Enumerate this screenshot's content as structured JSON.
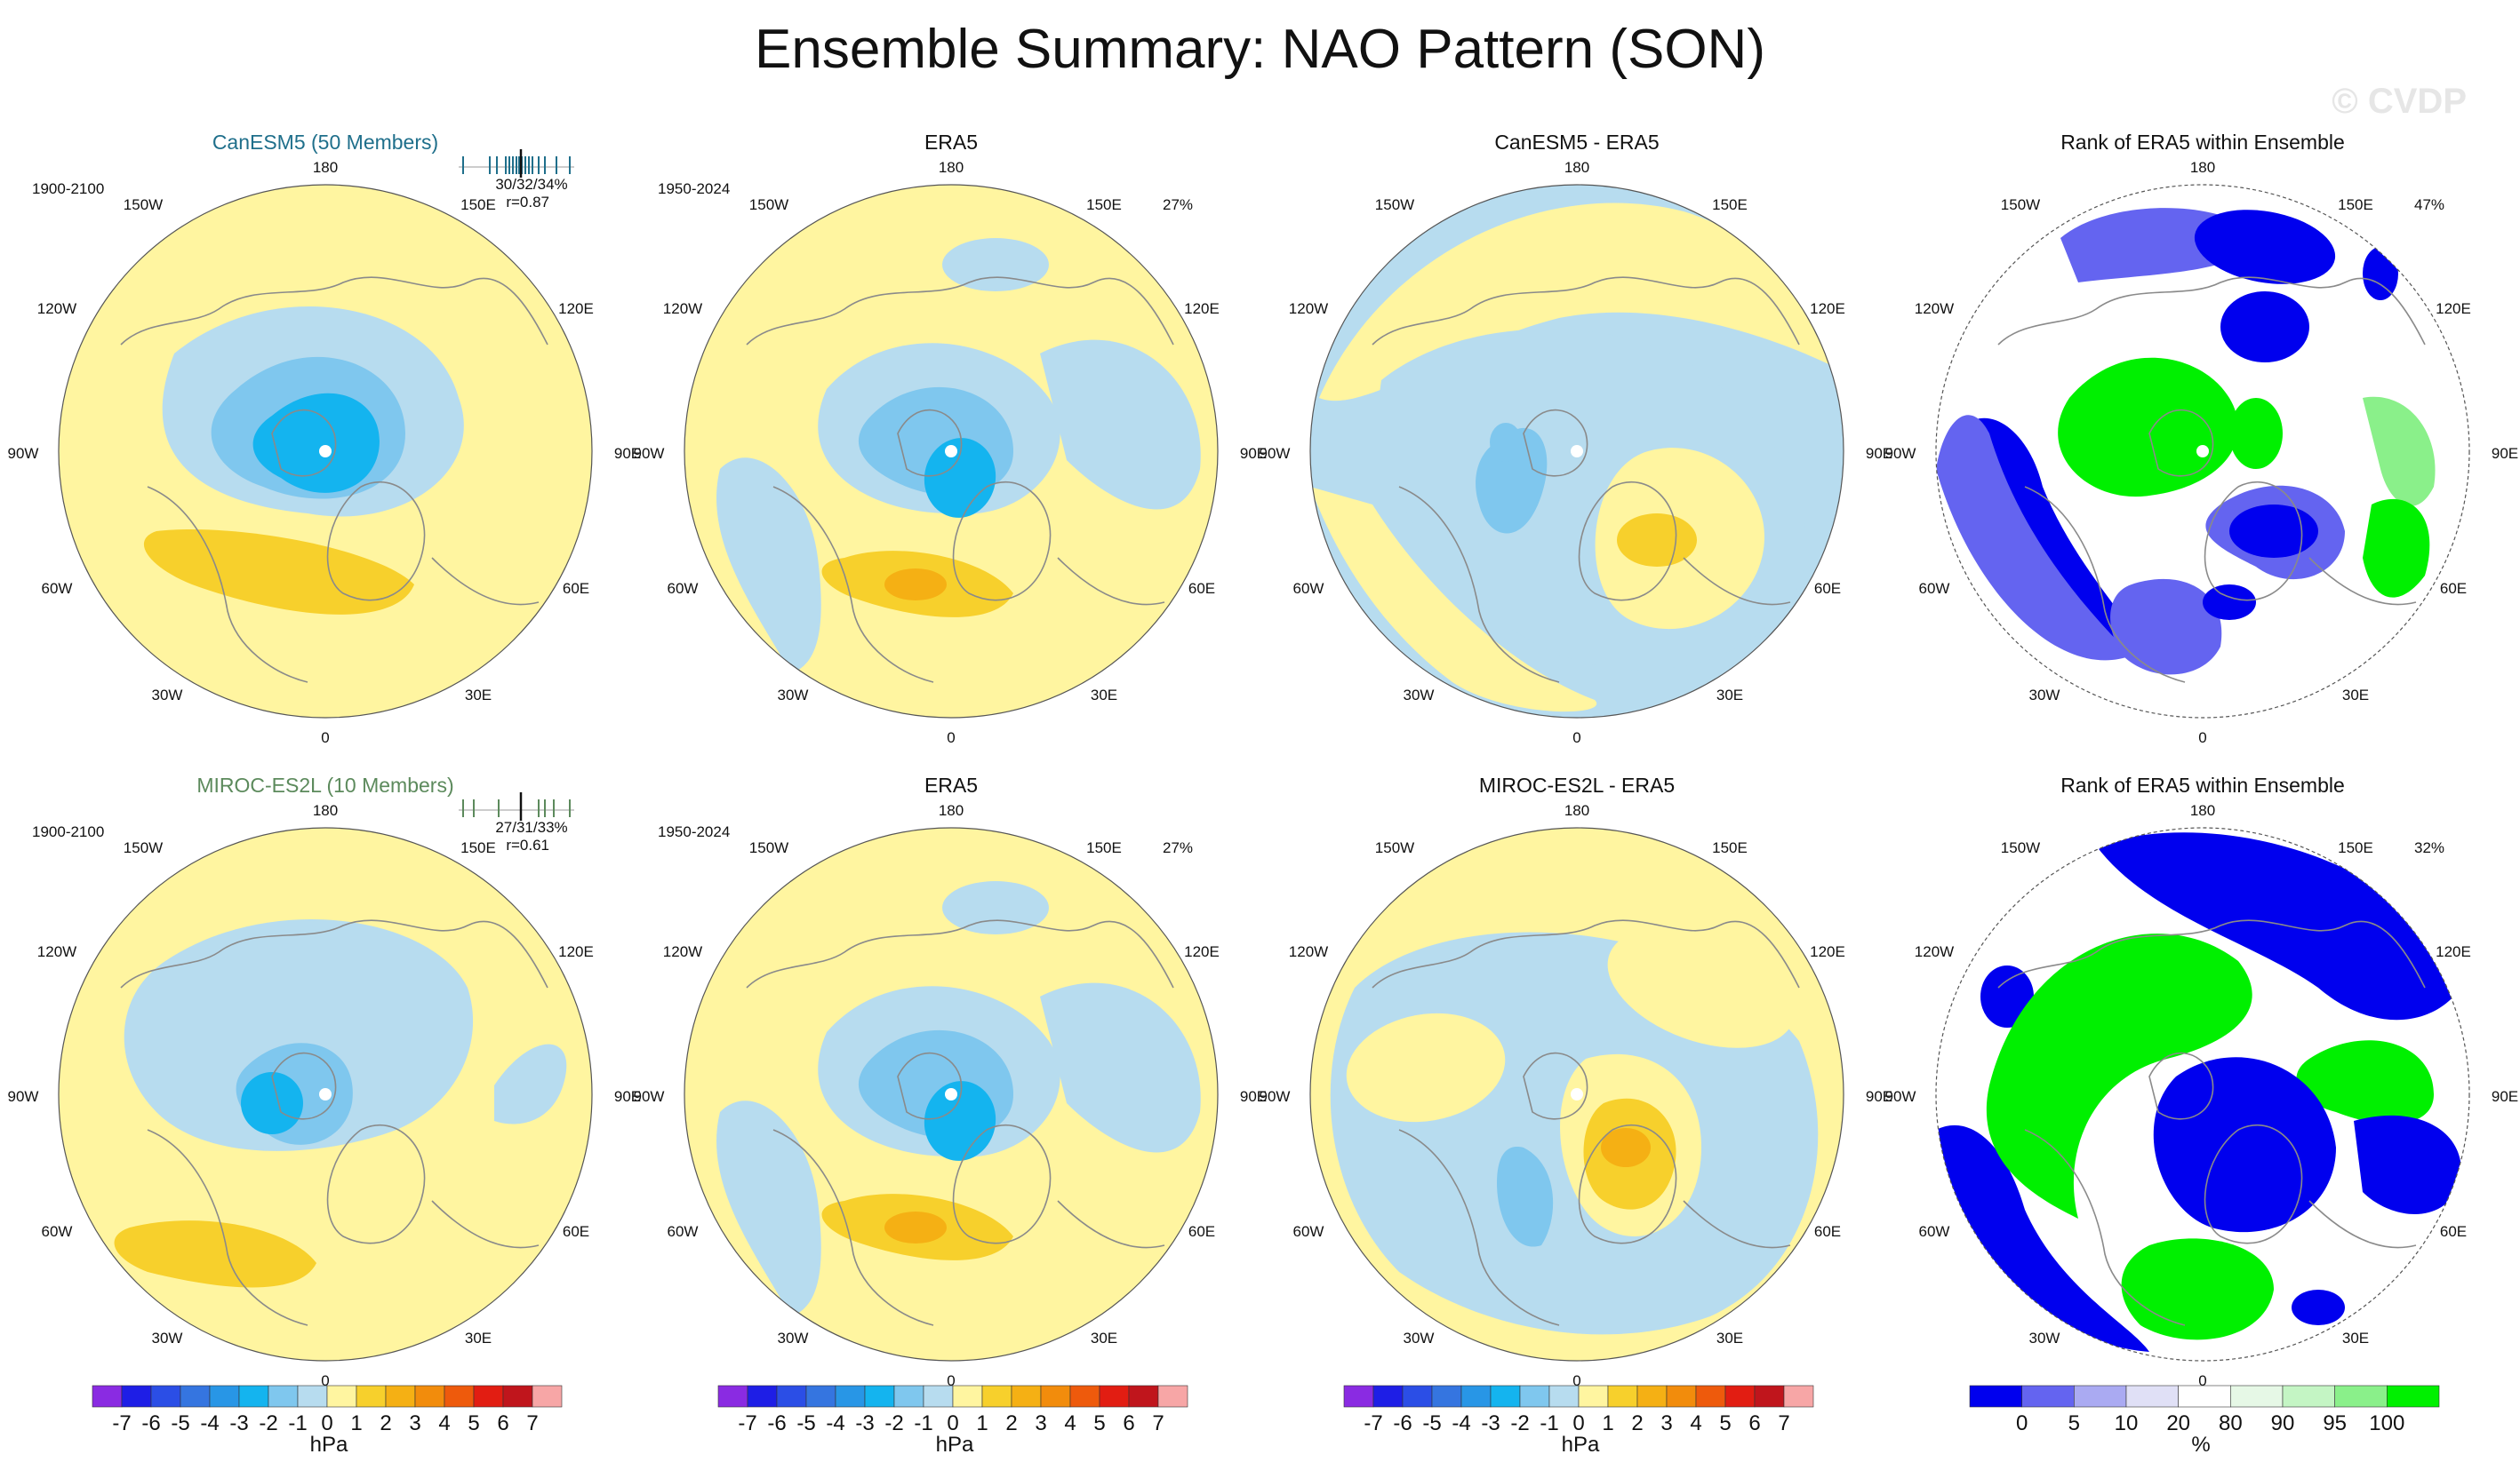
{
  "title": "Ensemble Summary: NAO Pattern (SON)",
  "watermark": "© CVDP",
  "colors": {
    "model1_label": "#1f6f8b",
    "model2_label": "#5c8a5c",
    "land_outline": "#8a8a8a",
    "pole_dot": "#ffffff",
    "map_border": "#555555"
  },
  "map_labels": {
    "lon_180": "180",
    "lon_150W": "150W",
    "lon_150E": "150E",
    "lon_120W": "120W",
    "lon_120E": "120E",
    "lon_90W": "90W",
    "lon_90E": "90E",
    "lon_60W": "60W",
    "lon_60E": "60E",
    "lon_30W": "30W",
    "lon_30E": "30E",
    "lon_0": "0"
  },
  "panels": [
    {
      "id": "canesm5",
      "title": "CanESM5 (50 Members)",
      "title_color": "model1",
      "period": "1900-2100",
      "stat": "30/32/34%",
      "stat2": "r=0.87",
      "has_ticks": true,
      "kind": "model"
    },
    {
      "id": "era5a",
      "title": "ERA5",
      "period": "1950-2024",
      "stat": "27%",
      "kind": "obs"
    },
    {
      "id": "diff1",
      "title": "CanESM5 - ERA5",
      "kind": "diff1"
    },
    {
      "id": "rank1",
      "title": "Rank of ERA5 within Ensemble",
      "stat": "47%",
      "kind": "rank1"
    },
    {
      "id": "miroc",
      "title": "MIROC-ES2L (10 Members)",
      "title_color": "model2",
      "period": "1900-2100",
      "stat": "27/31/33%",
      "stat2": "r=0.61",
      "has_ticks": true,
      "kind": "model2"
    },
    {
      "id": "era5b",
      "title": "ERA5",
      "period": "1950-2024",
      "stat": "27%",
      "kind": "obs"
    },
    {
      "id": "diff2",
      "title": "MIROC-ES2L - ERA5",
      "kind": "diff2"
    },
    {
      "id": "rank2",
      "title": "Rank of ERA5 within Ensemble",
      "stat": "32%",
      "kind": "rank2"
    }
  ],
  "chart_data": [
    {
      "type": "heatmap",
      "description_ref": "contour colorbar (hPa)",
      "colorbar_labels": [
        "-7",
        "-6",
        "-5",
        "-4",
        "-3",
        "-2",
        "-1",
        "0",
        "1",
        "2",
        "3",
        "4",
        "5",
        "6",
        "7"
      ],
      "colors": [
        "#8a2be2",
        "#1e1ee6",
        "#2b4ee6",
        "#3575e0",
        "#2896e6",
        "#14b4ef",
        "#7fc7ee",
        "#b7dcef",
        "#fff5a0",
        "#f7d02c",
        "#f5b014",
        "#f28c0c",
        "#ee5a0c",
        "#e21d12",
        "#c0151c",
        "#f7a6a6"
      ],
      "unit": "hPa"
    },
    {
      "type": "heatmap",
      "description_ref": "rank colorbar (%)",
      "colorbar_labels": [
        "0",
        "5",
        "10",
        "20",
        "80",
        "90",
        "95",
        "100"
      ],
      "colors": [
        "#0000ee",
        "#6464f0",
        "#aaaaf2",
        "#e0e0f6",
        "#ffffff",
        "#e6f8e6",
        "#c4f5c4",
        "#8af08a",
        "#00f000"
      ],
      "unit": "%"
    }
  ]
}
